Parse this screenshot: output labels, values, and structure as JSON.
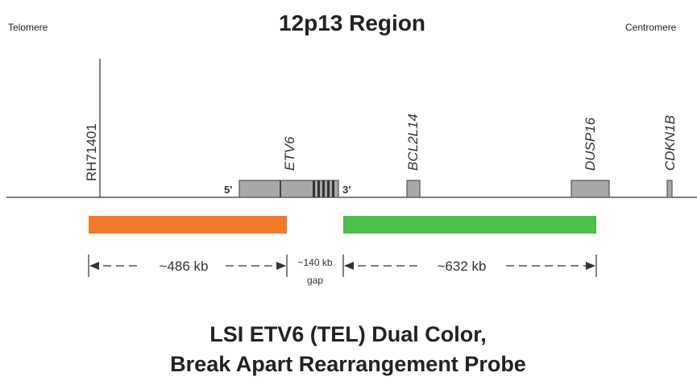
{
  "title": "12p13 Region",
  "telomere_label": "Telomere",
  "centromere_label": "Centromere",
  "genes": {
    "rh71401": "RH71401",
    "etv6": "ETV6",
    "bcl2l14": "BCL2L14",
    "dusp16": "DUSP16",
    "cdkn1b": "CDKN1B"
  },
  "etv6_ends": {
    "five_prime": "5'",
    "three_prime": "3'"
  },
  "probes": {
    "left_color": "#f07a2a",
    "right_color": "#4cc04a"
  },
  "dimensions": {
    "left": "~486 kb",
    "gap": "~140 kb",
    "gap_word": "gap",
    "right": "~632 kb"
  },
  "footer": {
    "line1": "LSI ETV6 (TEL) Dual Color,",
    "line2": "Break Apart Rearrangement Probe"
  }
}
